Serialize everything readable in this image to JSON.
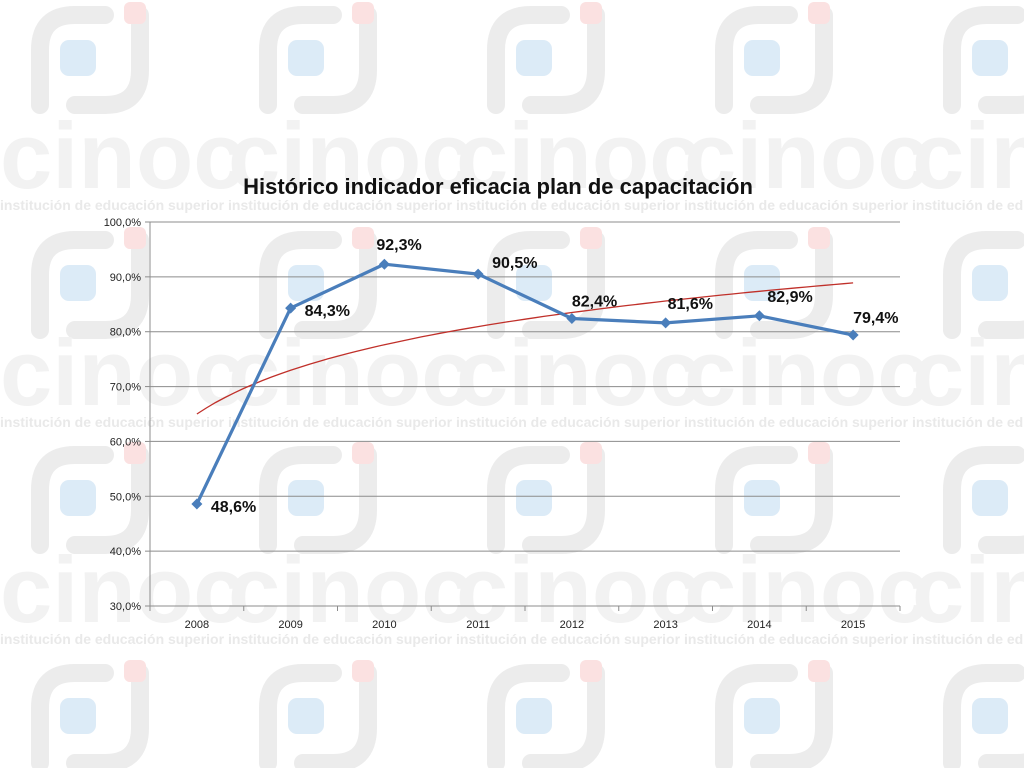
{
  "watermark": {
    "word": "cinoc",
    "tagline": "institución de educación superior",
    "colors": {
      "gray": "#ececec",
      "pink": "#fbe1e1",
      "blue": "#dcebf7"
    }
  },
  "chart_data": {
    "type": "line",
    "title": "Histórico indicador eficacia plan de capacitación",
    "xlabel": "",
    "ylabel": "",
    "categories": [
      "2008",
      "2009",
      "2010",
      "2011",
      "2012",
      "2013",
      "2014",
      "2015"
    ],
    "series": [
      {
        "values": [
          48.6,
          84.3,
          92.3,
          90.5,
          82.4,
          81.6,
          82.9,
          79.4
        ],
        "labels": [
          "48,6%",
          "84,3%",
          "92,3%",
          "90,5%",
          "82,4%",
          "81,6%",
          "82,9%",
          "79,4%"
        ],
        "color": "#4a7ebb",
        "marker": "diamond"
      }
    ],
    "trendline": {
      "kind": "logarithmic",
      "color": "#c0302a",
      "start": 65.0,
      "end": 88.9
    },
    "ylim": [
      30,
      100
    ],
    "yticks": [
      "30,0%",
      "40,0%",
      "50,0%",
      "60,0%",
      "70,0%",
      "80,0%",
      "90,0%",
      "100,0%"
    ],
    "grid": true,
    "legend": "none"
  }
}
